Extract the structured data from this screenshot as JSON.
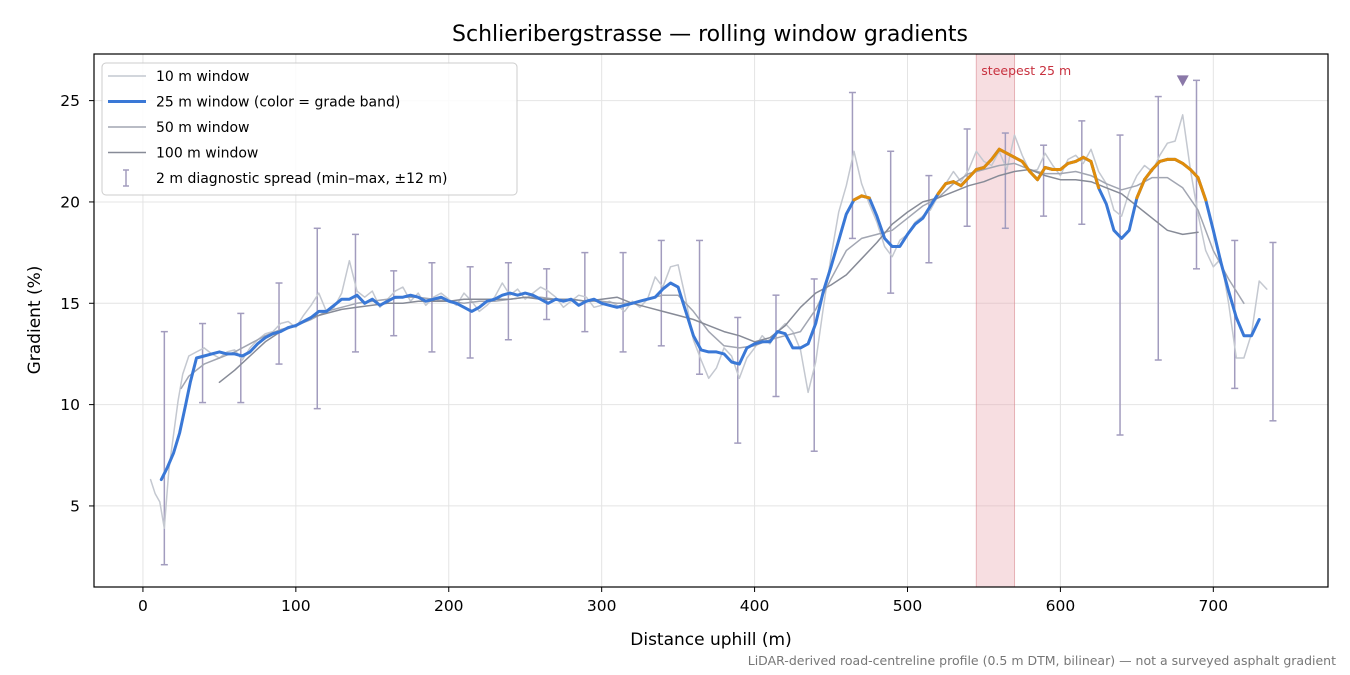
{
  "chart_data": {
    "type": "line",
    "title": "Schlieribergstrasse — rolling window gradients",
    "xlabel": "Distance uphill (m)",
    "ylabel": "Gradient (%)",
    "xlim": [
      -32,
      775
    ],
    "ylim": [
      1,
      27.3
    ],
    "xticks": [
      0,
      100,
      200,
      300,
      400,
      500,
      600,
      700
    ],
    "yticks": [
      5,
      10,
      15,
      20,
      25
    ],
    "grid": true,
    "legend_position": "top-left",
    "footnote": "LiDAR-derived road-centreline profile (0.5 m DTM, bilinear) — not a surveyed asphalt gradient",
    "highlight": {
      "label": "steepest 25 m",
      "x_range": [
        545,
        570
      ],
      "color": "#e8a0a8"
    },
    "peak_marker": {
      "x": 680,
      "y": 26.0,
      "color": "#8a78a8"
    },
    "series": [
      {
        "name": "10 m window",
        "color": "#c4c8d0",
        "x": [
          5,
          8,
          11,
          14,
          17,
          20,
          23,
          26,
          30,
          35,
          40,
          45,
          50,
          55,
          60,
          65,
          70,
          75,
          80,
          85,
          90,
          95,
          100,
          105,
          110,
          115,
          120,
          125,
          130,
          135,
          140,
          145,
          150,
          155,
          160,
          165,
          170,
          175,
          180,
          185,
          190,
          195,
          200,
          205,
          210,
          215,
          220,
          225,
          230,
          235,
          240,
          245,
          250,
          255,
          260,
          265,
          270,
          275,
          280,
          285,
          290,
          295,
          300,
          305,
          310,
          315,
          320,
          325,
          330,
          335,
          340,
          345,
          350,
          355,
          360,
          365,
          370,
          375,
          380,
          385,
          390,
          395,
          400,
          405,
          410,
          415,
          420,
          425,
          430,
          435,
          440,
          445,
          450,
          455,
          460,
          465,
          470,
          475,
          480,
          485,
          490,
          495,
          500,
          505,
          510,
          515,
          520,
          525,
          530,
          535,
          540,
          545,
          550,
          555,
          560,
          565,
          570,
          575,
          580,
          585,
          590,
          595,
          600,
          605,
          610,
          615,
          620,
          625,
          630,
          635,
          640,
          645,
          650,
          655,
          660,
          665,
          670,
          675,
          680,
          685,
          690,
          695,
          700,
          705,
          710,
          715,
          720,
          725,
          730,
          735
        ],
        "values": [
          6.3,
          5.6,
          5.2,
          3.9,
          6.8,
          8.5,
          10.2,
          11.5,
          12.4,
          12.6,
          12.8,
          12.5,
          12.3,
          12.6,
          12.7,
          12.2,
          12.8,
          13.2,
          13.5,
          13.6,
          14.0,
          14.1,
          13.8,
          14.4,
          14.9,
          15.5,
          14.6,
          14.8,
          15.5,
          17.1,
          15.6,
          15.3,
          15.6,
          14.8,
          15.2,
          15.6,
          15.8,
          15.1,
          15.5,
          14.9,
          15.3,
          15.5,
          15.2,
          14.9,
          15.5,
          15.1,
          14.6,
          14.9,
          15.3,
          16.0,
          15.4,
          15.7,
          15.2,
          15.5,
          15.8,
          15.6,
          15.3,
          14.8,
          15.1,
          15.4,
          15.3,
          14.8,
          14.9,
          15.1,
          14.9,
          14.6,
          15.1,
          14.8,
          15.2,
          16.3,
          15.8,
          16.8,
          16.9,
          15.2,
          13.2,
          12.2,
          11.3,
          11.8,
          12.8,
          12.4,
          11.3,
          12.3,
          12.8,
          13.4,
          13.0,
          13.6,
          14.0,
          13.6,
          12.7,
          10.6,
          12.1,
          14.8,
          17.3,
          19.5,
          20.8,
          22.5,
          20.9,
          19.9,
          19.0,
          17.8,
          17.3,
          18.1,
          18.4,
          19.0,
          19.3,
          19.6,
          20.3,
          20.9,
          21.5,
          21.0,
          21.6,
          22.5,
          22.0,
          21.8,
          22.5,
          21.6,
          23.3,
          22.3,
          21.5,
          21.6,
          22.4,
          21.8,
          21.3,
          22.1,
          22.3,
          21.9,
          22.6,
          21.5,
          20.9,
          19.6,
          19.3,
          20.5,
          21.3,
          21.8,
          21.5,
          22.3,
          22.9,
          23.0,
          24.3,
          21.6,
          19.4,
          17.6,
          16.8,
          17.2,
          15.0,
          12.3,
          12.3,
          13.5,
          16.1,
          15.7
        ],
        "width": 1.5
      },
      {
        "name": "25 m window (color = grade band)",
        "color": "#3a78d6",
        "x": [
          12,
          16,
          20,
          24,
          28,
          31,
          35,
          40,
          45,
          50,
          55,
          60,
          65,
          70,
          75,
          80,
          85,
          90,
          95,
          100,
          105,
          110,
          115,
          120,
          125,
          130,
          135,
          140,
          145,
          150,
          155,
          160,
          165,
          170,
          175,
          180,
          185,
          190,
          195,
          200,
          205,
          210,
          215,
          220,
          225,
          230,
          235,
          240,
          245,
          250,
          255,
          260,
          265,
          270,
          275,
          280,
          285,
          290,
          295,
          300,
          305,
          310,
          315,
          320,
          325,
          330,
          335,
          340,
          345,
          350,
          355,
          360,
          365,
          370,
          375,
          380,
          385,
          390,
          395,
          400,
          405,
          410,
          415,
          420,
          425,
          430,
          435,
          440,
          445,
          450,
          455,
          460,
          465,
          470,
          475,
          480,
          485,
          490,
          495,
          500,
          505,
          510,
          515,
          520,
          525,
          530,
          535,
          540,
          545,
          550,
          555,
          560,
          565,
          570,
          575,
          580,
          585,
          590,
          595,
          600,
          605,
          610,
          615,
          620,
          625,
          630,
          635,
          640,
          645,
          650,
          655,
          660,
          665,
          670,
          675,
          680,
          685,
          690,
          695,
          700,
          705,
          710,
          715,
          720,
          725,
          730
        ],
        "values": [
          6.3,
          6.9,
          7.6,
          8.6,
          10.0,
          11.1,
          12.3,
          12.4,
          12.5,
          12.6,
          12.5,
          12.5,
          12.4,
          12.6,
          13.0,
          13.3,
          13.5,
          13.6,
          13.8,
          13.9,
          14.1,
          14.3,
          14.6,
          14.6,
          14.9,
          15.2,
          15.2,
          15.4,
          15.0,
          15.2,
          14.9,
          15.1,
          15.3,
          15.3,
          15.4,
          15.3,
          15.1,
          15.2,
          15.3,
          15.1,
          15.0,
          14.8,
          14.6,
          14.8,
          15.1,
          15.2,
          15.4,
          15.5,
          15.4,
          15.5,
          15.4,
          15.2,
          15.0,
          15.2,
          15.1,
          15.2,
          14.9,
          15.1,
          15.2,
          15.0,
          14.9,
          14.8,
          14.9,
          15.0,
          15.1,
          15.2,
          15.3,
          15.7,
          16.0,
          15.8,
          14.6,
          13.4,
          12.7,
          12.6,
          12.6,
          12.5,
          12.1,
          12.0,
          12.8,
          13.0,
          13.1,
          13.1,
          13.6,
          13.5,
          12.8,
          12.8,
          13.0,
          14.0,
          15.6,
          16.8,
          18.1,
          19.4,
          20.1,
          20.3,
          20.2,
          19.3,
          18.2,
          17.8,
          17.8,
          18.4,
          18.9,
          19.2,
          19.8,
          20.4,
          20.9,
          21.0,
          20.8,
          21.2,
          21.6,
          21.7,
          22.1,
          22.6,
          22.4,
          22.2,
          22.0,
          21.5,
          21.1,
          21.7,
          21.6,
          21.6,
          21.9,
          22.0,
          22.2,
          22.0,
          20.7,
          19.9,
          18.6,
          18.2,
          18.6,
          20.2,
          21.1,
          21.6,
          22.0,
          22.1,
          22.1,
          21.9,
          21.6,
          21.2,
          20.1,
          18.6,
          17.0,
          15.6,
          14.3,
          13.4,
          13.4,
          14.2
        ],
        "width": 3
      },
      {
        "name": "50 m window",
        "color": "#a2a6b2",
        "x": [
          25,
          30,
          40,
          50,
          60,
          70,
          80,
          90,
          100,
          110,
          120,
          130,
          140,
          150,
          160,
          170,
          180,
          190,
          200,
          210,
          220,
          230,
          240,
          250,
          260,
          270,
          280,
          290,
          300,
          310,
          320,
          330,
          340,
          350,
          360,
          370,
          380,
          390,
          400,
          410,
          420,
          430,
          440,
          450,
          460,
          470,
          480,
          490,
          500,
          510,
          520,
          530,
          540,
          550,
          560,
          570,
          580,
          590,
          600,
          610,
          620,
          630,
          640,
          650,
          660,
          670,
          680,
          690,
          700,
          710,
          720
        ],
        "values": [
          10.8,
          11.4,
          12.0,
          12.3,
          12.6,
          13.0,
          13.4,
          13.7,
          13.9,
          14.2,
          14.6,
          14.8,
          15.0,
          15.1,
          15.2,
          15.3,
          15.3,
          15.2,
          15.1,
          15.0,
          15.1,
          15.1,
          15.2,
          15.3,
          15.3,
          15.2,
          15.2,
          15.1,
          15.1,
          15.0,
          15.0,
          15.2,
          15.4,
          15.4,
          14.6,
          13.6,
          12.9,
          12.8,
          12.9,
          13.2,
          13.4,
          13.6,
          14.7,
          16.2,
          17.6,
          18.2,
          18.4,
          18.6,
          19.2,
          19.8,
          20.2,
          20.9,
          21.4,
          21.6,
          21.8,
          21.9,
          21.6,
          21.4,
          21.4,
          21.5,
          21.3,
          20.9,
          20.6,
          20.8,
          21.2,
          21.2,
          20.7,
          19.6,
          17.6,
          16.2,
          15.0
        ],
        "width": 1.5
      },
      {
        "name": "100 m window",
        "color": "#878b97",
        "x": [
          50,
          60,
          70,
          80,
          90,
          100,
          110,
          120,
          130,
          140,
          150,
          160,
          170,
          180,
          190,
          200,
          210,
          220,
          230,
          240,
          250,
          260,
          270,
          280,
          290,
          300,
          310,
          320,
          330,
          340,
          350,
          360,
          370,
          380,
          390,
          400,
          410,
          420,
          430,
          440,
          450,
          460,
          470,
          480,
          490,
          500,
          510,
          520,
          530,
          540,
          550,
          560,
          570,
          580,
          590,
          600,
          610,
          620,
          630,
          640,
          650,
          660,
          670,
          680,
          690
        ],
        "values": [
          11.1,
          11.7,
          12.4,
          13.1,
          13.6,
          13.9,
          14.3,
          14.5,
          14.7,
          14.8,
          14.9,
          15.0,
          15.0,
          15.1,
          15.1,
          15.1,
          15.2,
          15.2,
          15.2,
          15.2,
          15.3,
          15.2,
          15.2,
          15.2,
          15.1,
          15.2,
          15.3,
          15.0,
          14.8,
          14.6,
          14.4,
          14.2,
          13.9,
          13.6,
          13.4,
          13.1,
          13.3,
          13.9,
          14.8,
          15.5,
          15.9,
          16.4,
          17.2,
          18.0,
          18.9,
          19.5,
          20.0,
          20.2,
          20.5,
          20.8,
          21.0,
          21.3,
          21.5,
          21.6,
          21.3,
          21.1,
          21.1,
          21.0,
          20.7,
          20.4,
          19.8,
          19.2,
          18.6,
          18.4,
          18.5
        ],
        "width": 1.5
      }
    ],
    "band_highlight_color": "#e08c0a",
    "band_threshold": 20,
    "errorbars": {
      "name": "2 m diagnostic spread (min–max, ±12 m)",
      "color": "#a29cbe",
      "x": [
        14,
        39,
        64,
        89,
        114,
        139,
        164,
        189,
        214,
        239,
        264,
        289,
        314,
        339,
        364,
        389,
        414,
        439,
        464,
        489,
        514,
        539,
        564,
        589,
        614,
        639,
        664,
        689,
        714,
        739
      ],
      "low": [
        2.1,
        10.1,
        10.1,
        12.0,
        9.8,
        12.6,
        13.4,
        12.6,
        12.3,
        13.2,
        14.2,
        13.6,
        12.6,
        12.9,
        11.5,
        8.1,
        10.4,
        7.7,
        18.2,
        15.5,
        17.0,
        18.8,
        18.7,
        19.3,
        18.9,
        8.5,
        12.2,
        16.7,
        10.8,
        9.2
      ],
      "high": [
        13.6,
        14.0,
        14.5,
        16.0,
        18.7,
        18.4,
        16.6,
        17.0,
        16.8,
        17.0,
        16.7,
        17.5,
        17.5,
        18.1,
        18.1,
        14.3,
        15.4,
        16.2,
        25.4,
        22.5,
        21.3,
        23.6,
        23.4,
        22.8,
        24.0,
        23.3,
        25.2,
        26.0,
        18.1,
        18.0
      ]
    }
  }
}
